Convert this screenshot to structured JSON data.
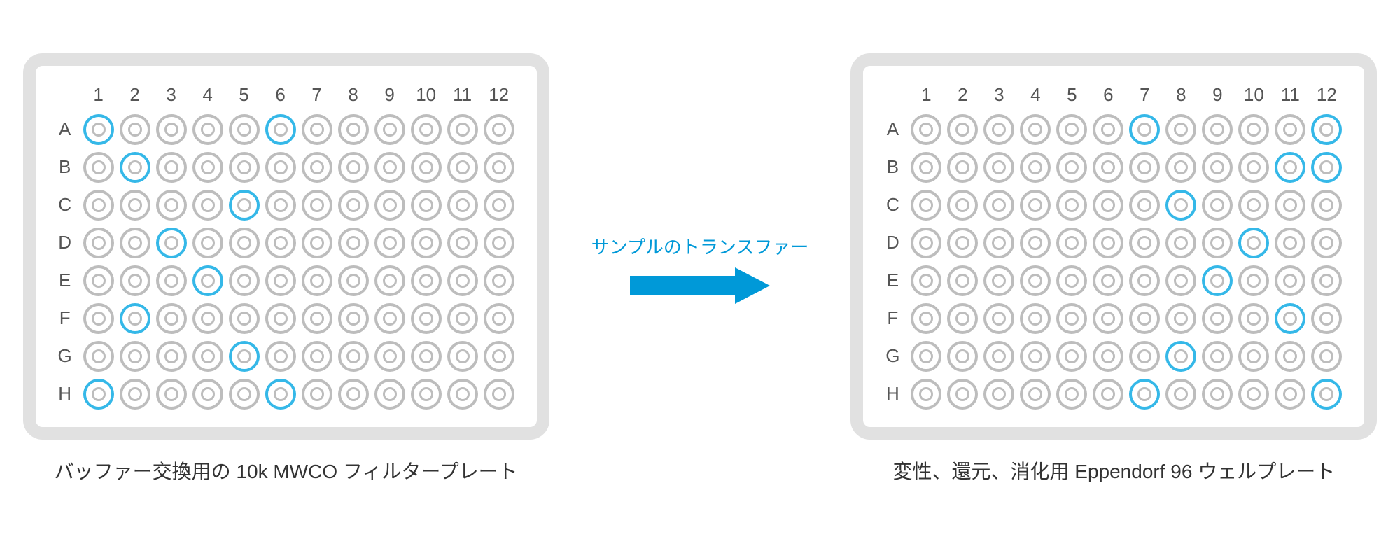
{
  "colors": {
    "plate_border": "#e1e1e1",
    "well_ring": "#bdbdbd",
    "well_highlight": "#35b8e8",
    "arrow_color": "#0099d8",
    "text_color": "#555555",
    "caption_color": "#333333",
    "background": "#ffffff"
  },
  "typography": {
    "header_fontsize": 26,
    "caption_fontsize": 28,
    "transfer_label_fontsize": 26
  },
  "layout": {
    "rows": [
      "A",
      "B",
      "C",
      "D",
      "E",
      "F",
      "G",
      "H"
    ],
    "cols": [
      "1",
      "2",
      "3",
      "4",
      "5",
      "6",
      "7",
      "8",
      "9",
      "10",
      "11",
      "12"
    ],
    "well_size": 44,
    "well_ring_width": 4,
    "plate_border_radius": 28,
    "plate_border_width": 18
  },
  "left_plate": {
    "caption": "バッファー交換用の 10k MWCO フィルタープレート",
    "highlights": [
      {
        "row": "A",
        "col": 1
      },
      {
        "row": "A",
        "col": 6
      },
      {
        "row": "B",
        "col": 2
      },
      {
        "row": "C",
        "col": 5
      },
      {
        "row": "D",
        "col": 3
      },
      {
        "row": "E",
        "col": 4
      },
      {
        "row": "F",
        "col": 2
      },
      {
        "row": "G",
        "col": 5
      },
      {
        "row": "H",
        "col": 1
      },
      {
        "row": "H",
        "col": 6
      }
    ]
  },
  "right_plate": {
    "caption": "変性、還元、消化用 Eppendorf 96 ウェルプレート",
    "highlights": [
      {
        "row": "A",
        "col": 7
      },
      {
        "row": "A",
        "col": 12
      },
      {
        "row": "B",
        "col": 11
      },
      {
        "row": "B",
        "col": 12
      },
      {
        "row": "C",
        "col": 8
      },
      {
        "row": "D",
        "col": 10
      },
      {
        "row": "E",
        "col": 9
      },
      {
        "row": "F",
        "col": 11
      },
      {
        "row": "G",
        "col": 8
      },
      {
        "row": "H",
        "col": 7
      },
      {
        "row": "H",
        "col": 12
      }
    ]
  },
  "transfer": {
    "label": "サンプルのトランスファー",
    "arrow_width": 200,
    "arrow_height": 52
  }
}
